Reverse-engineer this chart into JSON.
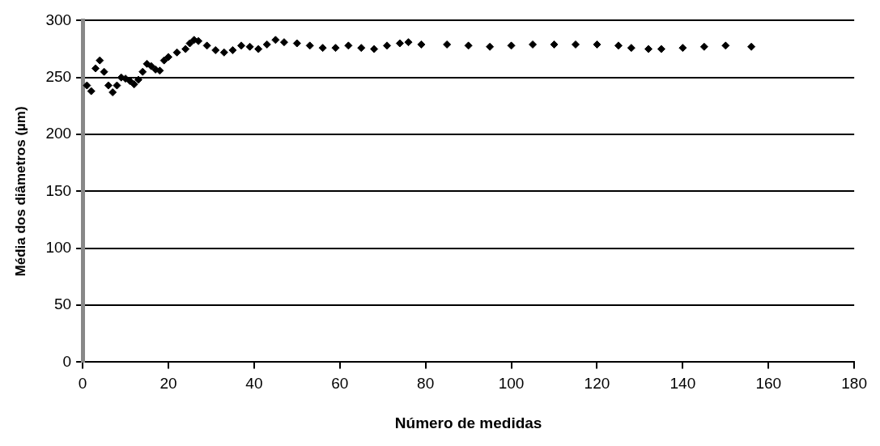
{
  "chart_data": {
    "type": "scatter",
    "xlabel": "Número de medidas",
    "ylabel": "Média dos diâmetros (µm)",
    "x": [
      1,
      2,
      3,
      4,
      5,
      6,
      7,
      8,
      9,
      10,
      11,
      12,
      13,
      14,
      15,
      16,
      17,
      18,
      19,
      20,
      22,
      24,
      25,
      26,
      27,
      29,
      31,
      33,
      35,
      37,
      39,
      41,
      43,
      45,
      47,
      50,
      53,
      56,
      59,
      62,
      65,
      68,
      71,
      74,
      76,
      79,
      85,
      90,
      95,
      100,
      105,
      110,
      115,
      120,
      125,
      128,
      132,
      135,
      140,
      145,
      150,
      156
    ],
    "series": [
      {
        "color": "#000000",
        "values": [
          243,
          238,
          258,
          265,
          255,
          243,
          237,
          243,
          250,
          249,
          247,
          244,
          248,
          255,
          262,
          260,
          257,
          256,
          265,
          268,
          272,
          275,
          280,
          283,
          282,
          278,
          274,
          272,
          274,
          278,
          277,
          275,
          279,
          283,
          281,
          280,
          278,
          276,
          276,
          278,
          276,
          275,
          278,
          280,
          281,
          279,
          279,
          278,
          277,
          278,
          279,
          279,
          279,
          279,
          278,
          276,
          275,
          275,
          276,
          277,
          278,
          277
        ]
      }
    ],
    "xlim": [
      0,
      180
    ],
    "xticks": [
      0,
      20,
      40,
      60,
      80,
      100,
      120,
      140,
      160,
      180
    ],
    "ylim": [
      0,
      300
    ],
    "yticks": [
      0,
      50,
      100,
      150,
      200,
      250,
      300
    ],
    "grid": "y",
    "legend": false,
    "marker": "diamond"
  }
}
